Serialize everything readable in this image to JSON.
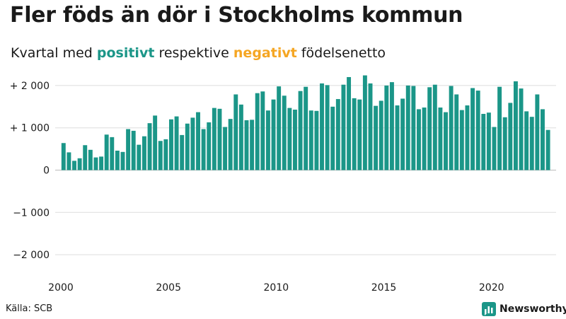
{
  "header": {
    "title": "Fler föds än dör i Stockholms kommun",
    "subtitle_prefix": "Kvartal med ",
    "subtitle_positive": "positivt",
    "subtitle_middle": " respektive ",
    "subtitle_negative": "negativt",
    "subtitle_suffix": " födelsenetto"
  },
  "colors": {
    "positive": "#1b9688",
    "negative": "#f5a623",
    "grid": "#dddddd",
    "text": "#1a1a1a"
  },
  "footer": {
    "source": "Källa: SCB",
    "brand_name": "Newsworthy",
    "brand_icon": "newsworthy-logo-icon"
  },
  "chart_data": {
    "type": "bar",
    "xlabel": "",
    "ylabel": "",
    "ylim": [
      -2500,
      2350
    ],
    "xlim": [
      2000.0,
      2023.0
    ],
    "grid": true,
    "y_ticks": [
      {
        "value": 2000,
        "label": "+ 2 000"
      },
      {
        "value": 1000,
        "label": "+ 1 000"
      },
      {
        "value": 0,
        "label": "0"
      },
      {
        "value": -1000,
        "label": "−1 000"
      },
      {
        "value": -2000,
        "label": "−2 000"
      }
    ],
    "x_ticks": [
      {
        "value": 2000,
        "label": "2000"
      },
      {
        "value": 2005,
        "label": "2005"
      },
      {
        "value": 2010,
        "label": "2010"
      },
      {
        "value": 2015,
        "label": "2015"
      },
      {
        "value": 2020,
        "label": "2020"
      }
    ],
    "series": [
      {
        "start_year": 2000,
        "periods_per_year": 4,
        "values": [
          640,
          420,
          220,
          280,
          590,
          480,
          300,
          320,
          840,
          780,
          460,
          430,
          970,
          930,
          600,
          800,
          1110,
          1290,
          690,
          730,
          1200,
          1270,
          830,
          1100,
          1240,
          1370,
          970,
          1130,
          1470,
          1450,
          1020,
          1210,
          1790,
          1550,
          1180,
          1190,
          1820,
          1860,
          1410,
          1670,
          1980,
          1760,
          1470,
          1430,
          1870,
          1970,
          1410,
          1400,
          2050,
          2010,
          1500,
          1680,
          2020,
          2200,
          1700,
          1670,
          2240,
          2050,
          1520,
          1640,
          2000,
          2080,
          1530,
          1690,
          2000,
          1990,
          1440,
          1480,
          1960,
          2020,
          1480,
          1370,
          1990,
          1790,
          1420,
          1530,
          1940,
          1880,
          1330,
          1360,
          1020,
          1970,
          1250,
          1590,
          2100,
          1930,
          1390,
          1260,
          1790,
          1440,
          950
        ]
      }
    ]
  }
}
